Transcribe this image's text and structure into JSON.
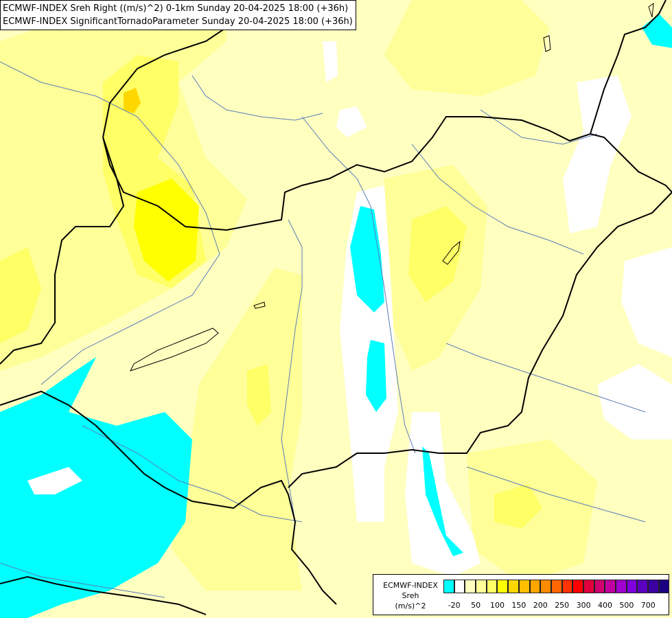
{
  "title": {
    "line1": "ECMWF-INDEX Sreh Right ((m/s)^2) 0-1km Sunday 20-04-2025 18:00 (+36h)",
    "line2": "ECMWF-INDEX SignificantTornadoParameter Sunday 20-04-2025 18:00 (+36h)"
  },
  "legend": {
    "title_lines": [
      "ECMWF-INDEX",
      "Sreh",
      "(m/s)^2"
    ],
    "colors": [
      "#00ffff",
      "#ffffff",
      "#ffffc0",
      "#ffff99",
      "#ffff66",
      "#ffff00",
      "#ffd700",
      "#ffbf00",
      "#ffa500",
      "#ff8c00",
      "#ff6600",
      "#ff3300",
      "#ff0000",
      "#e0003c",
      "#d00070",
      "#c000a0",
      "#a000d0",
      "#8000e0",
      "#5a00c0",
      "#3a00a0",
      "#1a0080"
    ],
    "ticks": [
      "-20",
      "50",
      "100",
      "150",
      "200",
      "250",
      "300",
      "400",
      "500",
      "700"
    ]
  },
  "map_colors": {
    "background": "#ffffc0",
    "light_yellow": "#ffff99",
    "yellow": "#ffff66",
    "bright_yellow": "#ffff00",
    "gold": "#ffd700",
    "cyan": "#00ffff",
    "white": "#ffffff",
    "border": "#000000",
    "river": "#5a7cb8"
  }
}
